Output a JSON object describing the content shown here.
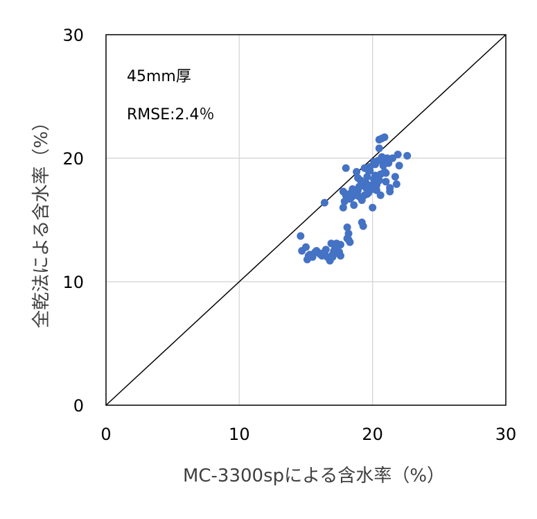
{
  "chart_data": {
    "type": "scatter",
    "xlabel": "MC-3300spによる含水率（%）",
    "ylabel": "全乾法による含水率（%）",
    "xlim": [
      0,
      30
    ],
    "ylim": [
      0,
      30
    ],
    "xticks": [
      "0",
      "10",
      "20",
      "30"
    ],
    "yticks": [
      "0",
      "10",
      "20",
      "30"
    ],
    "grid": true,
    "reference_line": {
      "from": [
        0,
        0
      ],
      "to": [
        30,
        30
      ]
    },
    "annotations": [
      "45mm厚",
      "RMSE:2.4％"
    ],
    "point_color": "#4472C4",
    "series": [
      {
        "x": [
          14.6,
          14.7,
          15.0,
          15.1,
          15.3,
          15.5,
          15.8,
          16.0,
          16.2,
          16.4,
          16.6,
          16.8,
          16.9,
          17.0,
          17.1,
          17.2,
          17.3,
          17.4,
          17.5,
          17.6,
          17.0,
          17.3,
          17.6,
          16.5,
          16.1,
          15.7,
          15.2,
          17.8,
          17.9,
          18.0,
          18.1,
          18.2,
          18.3,
          18.4,
          18.5,
          18.6,
          18.7,
          18.8,
          18.9,
          19.0,
          19.1,
          19.2,
          19.3,
          19.4,
          19.5,
          19.6,
          19.7,
          19.8,
          19.9,
          20.0,
          20.1,
          20.2,
          20.3,
          20.4,
          20.5,
          20.6,
          20.7,
          20.8,
          20.9,
          21.0,
          21.1,
          21.2,
          21.3,
          21.5,
          21.7,
          21.9,
          22.0,
          22.6,
          20.5,
          20.7,
          20.8,
          20.6,
          20.2,
          19.8,
          19.5,
          19.3,
          19.2,
          18.9,
          18.4,
          18.0,
          16.4,
          17.8,
          18.0,
          18.1,
          18.2,
          18.3,
          19.2,
          19.4,
          20.3,
          20.5,
          21.0,
          21.3,
          21.8,
          19.0,
          19.6,
          20.0,
          20.4,
          20.9,
          18.6,
          19.7,
          20.1
        ],
        "y": [
          13.7,
          12.5,
          12.8,
          11.8,
          12.2,
          12.0,
          12.5,
          12.3,
          12.1,
          12.4,
          12.0,
          11.7,
          13.1,
          12.2,
          12.5,
          12.8,
          13.1,
          12.3,
          12.4,
          13.0,
          12.0,
          12.7,
          12.1,
          12.6,
          12.2,
          12.4,
          12.1,
          17.3,
          16.5,
          17.1,
          14.4,
          13.9,
          13.2,
          16.8,
          17.5,
          16.2,
          17.0,
          18.9,
          17.4,
          16.9,
          18.2,
          14.8,
          14.5,
          19.2,
          17.6,
          18.5,
          17.2,
          19.0,
          17.8,
          16.0,
          18.3,
          19.5,
          17.4,
          19.8,
          21.5,
          18.7,
          20.1,
          19.4,
          21.7,
          18.1,
          20.0,
          19.6,
          17.3,
          20.0,
          18.5,
          20.3,
          19.4,
          20.2,
          20.8,
          21.6,
          19.9,
          17.0,
          18.6,
          19.3,
          18.0,
          17.9,
          16.8,
          18.4,
          17.2,
          19.2,
          16.4,
          16.0,
          17.0,
          13.5,
          13.4,
          16.7,
          16.6,
          17.0,
          17.8,
          18.2,
          18.8,
          17.6,
          17.9,
          17.7,
          17.1,
          17.5,
          18.1,
          18.9,
          17.4,
          19.0,
          19.7
        ]
      }
    ]
  }
}
